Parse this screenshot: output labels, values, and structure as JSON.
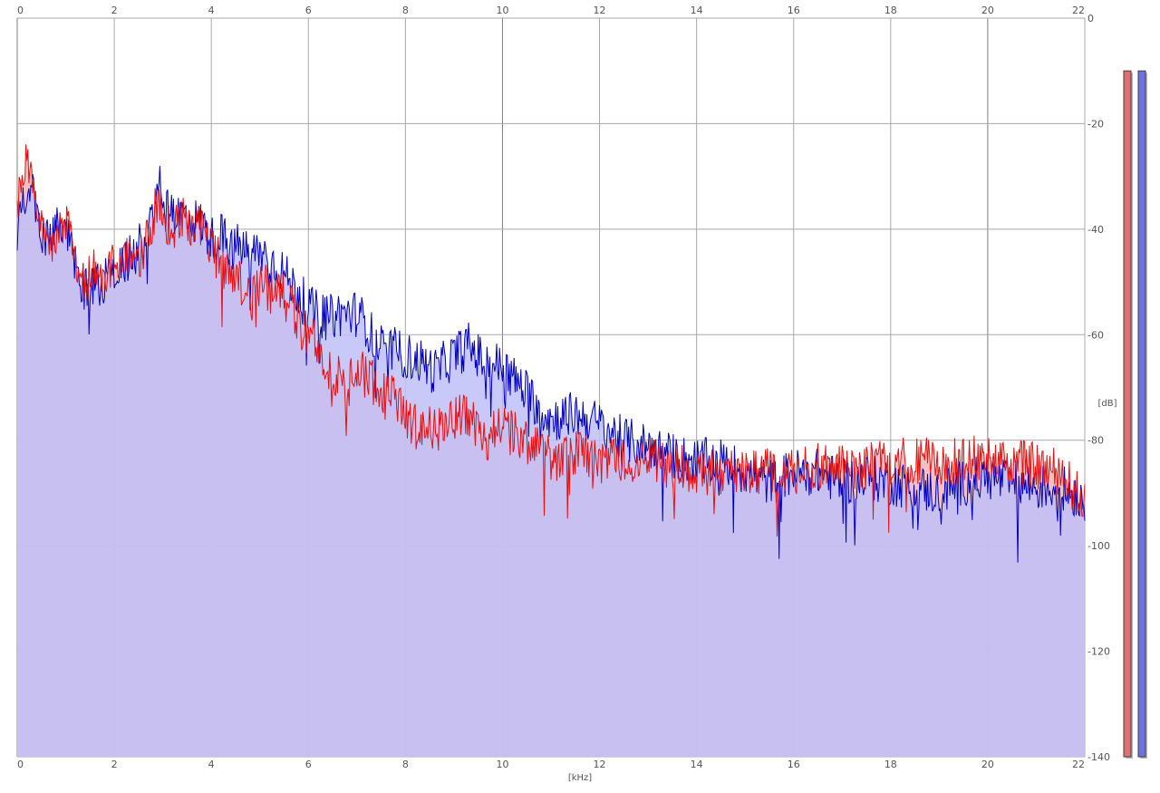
{
  "chart_data": {
    "type": "area",
    "xlabel": "[kHz]",
    "ylabel": "[dB]",
    "xlim": [
      0,
      22
    ],
    "ylim": [
      -140,
      0
    ],
    "x_ticks": [
      0,
      2,
      4,
      6,
      8,
      10,
      12,
      14,
      16,
      18,
      20,
      22
    ],
    "x_tick_labels": [
      "0",
      "2",
      "4",
      "6",
      "8",
      "10",
      "12",
      "14",
      "16",
      "18",
      "20",
      "22"
    ],
    "y_ticks": [
      0,
      -20,
      -40,
      -60,
      -80,
      -100,
      -120,
      -140
    ],
    "y_tick_labels": [
      "0",
      "-20",
      "-40",
      "-60",
      "-80",
      "-100",
      "-120",
      "-140"
    ],
    "grid": true,
    "colors": {
      "background": "#ffffff",
      "grid": "#a8a8a8",
      "grid_major": "#808080",
      "left_line": "#e81010",
      "left_fill": "#f5b5b5",
      "right_line": "#0000c0",
      "right_fill": "#c0c0f8",
      "label": "#555555"
    },
    "series": [
      {
        "channel": "left",
        "x": [
          0,
          0.1,
          0.2,
          0.3,
          0.5,
          0.7,
          0.9,
          1.0,
          1.2,
          1.4,
          1.6,
          1.8,
          2.0,
          2.2,
          2.4,
          2.6,
          2.8,
          2.9,
          3.0,
          3.2,
          3.4,
          3.6,
          3.8,
          4.0,
          4.2,
          4.4,
          4.6,
          4.8,
          5.0,
          5.2,
          5.4,
          5.6,
          5.8,
          6.0,
          6.2,
          6.4,
          6.6,
          6.8,
          7.0,
          7.2,
          7.4,
          7.6,
          7.8,
          8.0,
          8.3,
          8.6,
          9.0,
          9.3,
          9.6,
          10.0,
          10.5,
          11.0,
          11.5,
          12.0,
          12.5,
          13.0,
          13.5,
          14.0,
          14.5,
          15.0,
          15.5,
          16.0,
          16.5,
          17.0,
          17.5,
          18.0,
          18.5,
          19.0,
          19.5,
          20.0,
          20.5,
          21.0,
          21.5,
          22.0
        ],
        "y": [
          -37,
          -28,
          -26,
          -30,
          -38,
          -44,
          -40,
          -39,
          -45,
          -50,
          -48,
          -50,
          -46,
          -45,
          -48,
          -44,
          -38,
          -34,
          -38,
          -40,
          -38,
          -39,
          -40,
          -44,
          -46,
          -50,
          -50,
          -54,
          -50,
          -52,
          -52,
          -54,
          -58,
          -60,
          -62,
          -66,
          -68,
          -70,
          -66,
          -68,
          -70,
          -72,
          -72,
          -76,
          -78,
          -78,
          -76,
          -75,
          -80,
          -78,
          -80,
          -84,
          -82,
          -84,
          -84,
          -84,
          -85,
          -86,
          -86,
          -86,
          -86,
          -86,
          -85,
          -85,
          -85,
          -84,
          -84,
          -84,
          -84,
          -83,
          -84,
          -85,
          -86,
          -92
        ]
      },
      {
        "channel": "right",
        "x": [
          0,
          0.1,
          0.2,
          0.3,
          0.5,
          0.7,
          0.9,
          1.0,
          1.2,
          1.4,
          1.6,
          1.8,
          2.0,
          2.2,
          2.4,
          2.6,
          2.8,
          2.9,
          3.0,
          3.2,
          3.4,
          3.6,
          3.8,
          4.0,
          4.2,
          4.4,
          4.6,
          4.8,
          5.0,
          5.2,
          5.4,
          5.6,
          5.8,
          6.0,
          6.2,
          6.4,
          6.6,
          6.8,
          7.0,
          7.2,
          7.4,
          7.6,
          7.8,
          8.0,
          8.3,
          8.6,
          9.0,
          9.3,
          9.6,
          10.0,
          10.5,
          11.0,
          11.5,
          12.0,
          12.5,
          13.0,
          13.5,
          14.0,
          14.5,
          15.0,
          15.5,
          16.0,
          16.5,
          17.0,
          17.5,
          18.0,
          18.5,
          19.0,
          19.5,
          20.0,
          20.5,
          21.0,
          21.5,
          22.0
        ],
        "y": [
          -40,
          -33,
          -34,
          -32,
          -40,
          -42,
          -38,
          -40,
          -46,
          -52,
          -50,
          -50,
          -48,
          -46,
          -45,
          -42,
          -36,
          -30,
          -36,
          -38,
          -37,
          -38,
          -39,
          -42,
          -41,
          -44,
          -43,
          -45,
          -44,
          -46,
          -47,
          -50,
          -52,
          -55,
          -56,
          -57,
          -56,
          -56,
          -56,
          -58,
          -62,
          -63,
          -63,
          -64,
          -65,
          -67,
          -64,
          -62,
          -65,
          -66,
          -71,
          -76,
          -75,
          -77,
          -80,
          -81,
          -83,
          -84,
          -84,
          -86,
          -88,
          -86,
          -86,
          -88,
          -87,
          -88,
          -89,
          -90,
          -88,
          -87,
          -88,
          -89,
          -89,
          -91
        ]
      }
    ],
    "meters": [
      {
        "channel": "left",
        "color": "#e07070",
        "level_db": -10
      },
      {
        "channel": "right",
        "color": "#7070e0",
        "level_db": -10
      }
    ]
  }
}
